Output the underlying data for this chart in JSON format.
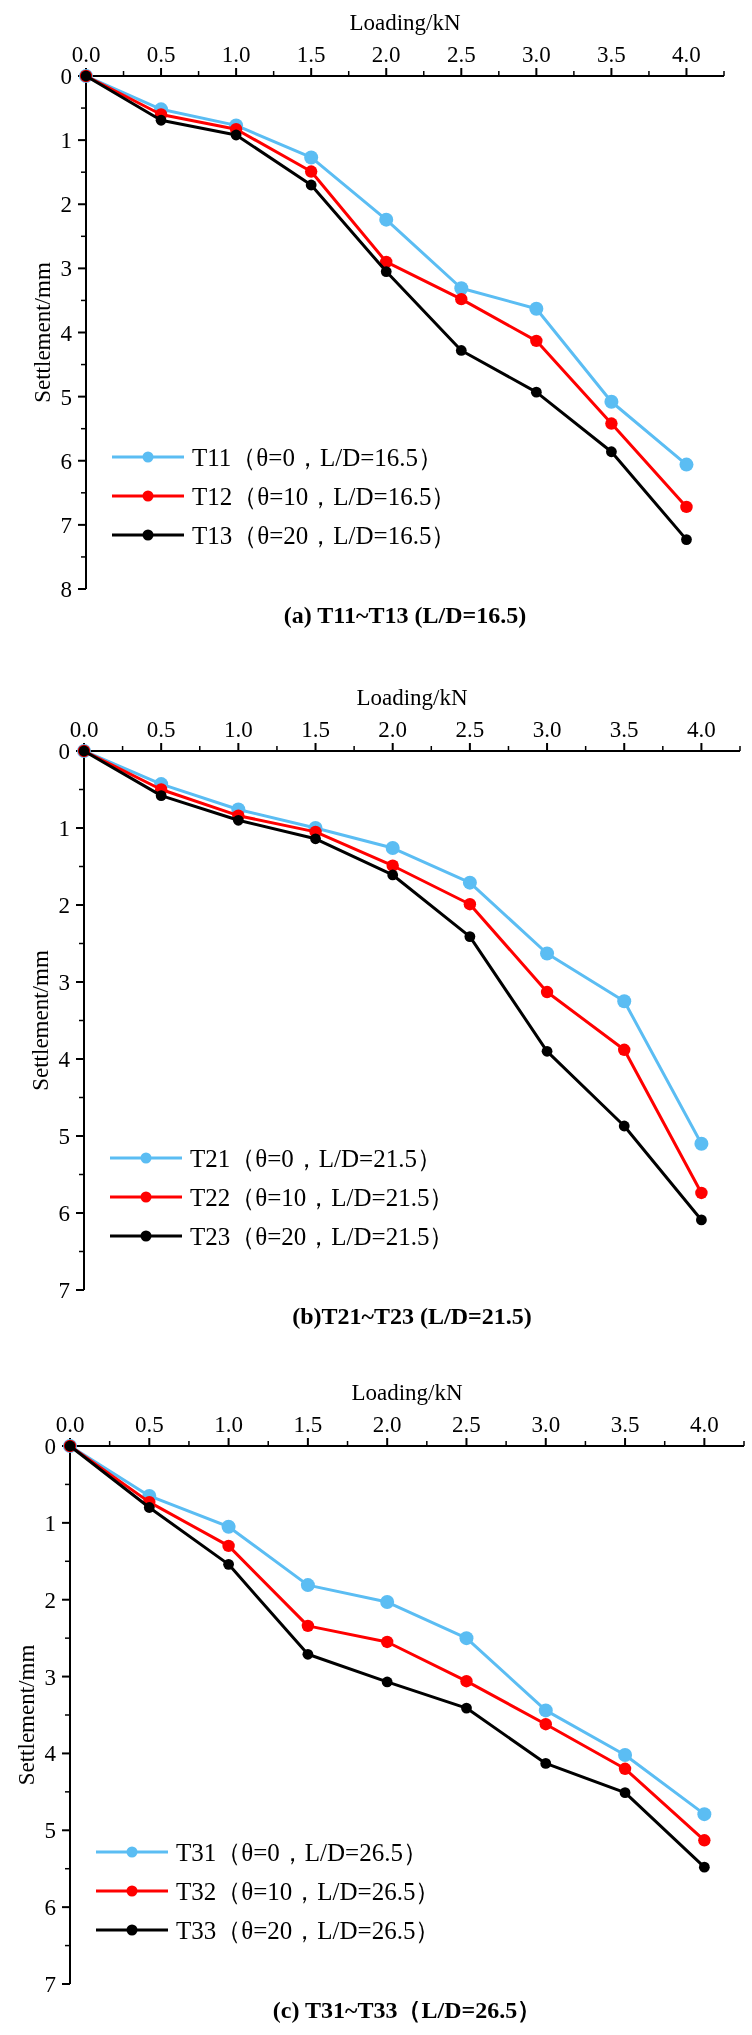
{
  "chart_data": [
    {
      "type": "line",
      "title": "(a) T11~T13 (L/D=16.5)",
      "xlabel": "Loading/kN",
      "ylabel": "Settlement/mm",
      "x": [
        0,
        0.5,
        1.0,
        1.5,
        2.0,
        2.5,
        3.0,
        3.5,
        4.0
      ],
      "xlim": [
        0,
        4.25
      ],
      "xticks": [
        {
          "value": 0,
          "label": "0.0"
        },
        {
          "value": 0.5,
          "label": "0.5"
        },
        {
          "value": 1,
          "label": "1.0"
        },
        {
          "value": 1.5,
          "label": "1.5"
        },
        {
          "value": 2,
          "label": "2.0"
        },
        {
          "value": 2.5,
          "label": "2.5"
        },
        {
          "value": 3,
          "label": "3.0"
        },
        {
          "value": 3.5,
          "label": "3.5"
        },
        {
          "value": 4,
          "label": "4.0"
        }
      ],
      "ylim": [
        8,
        0
      ],
      "yticks": [
        0,
        1,
        2,
        3,
        4,
        5,
        6,
        7,
        8
      ],
      "marker": "circle",
      "legend": "bottom left",
      "grid": false,
      "series": [
        {
          "name": "T11（θ=0，L/D=16.5）",
          "color": "#5bbdf3",
          "values": [
            0,
            0.52,
            0.77,
            1.27,
            2.24,
            3.31,
            3.63,
            5.08,
            6.06
          ]
        },
        {
          "name": "T12（θ=10，L/D=16.5）",
          "color": "#ff0000",
          "values": [
            0,
            0.6,
            0.83,
            1.49,
            2.9,
            3.48,
            4.13,
            5.42,
            6.72
          ]
        },
        {
          "name": "T13（θ=20，L/D=16.5）",
          "color": "#000000",
          "values": [
            0,
            0.69,
            0.92,
            1.7,
            3.05,
            4.28,
            4.93,
            5.86,
            7.23
          ]
        }
      ]
    },
    {
      "type": "line",
      "title": "(b)T21~T23 (L/D=21.5)",
      "xlabel": "Loading/kN",
      "ylabel": "Settlement/mm",
      "x": [
        0,
        0.5,
        1.0,
        1.5,
        2.0,
        2.5,
        3.0,
        3.5,
        4.0
      ],
      "xlim": [
        0,
        4.25
      ],
      "xticks": [
        {
          "value": 0,
          "label": "0.0"
        },
        {
          "value": 0.5,
          "label": "0.5"
        },
        {
          "value": 1,
          "label": "1.0"
        },
        {
          "value": 1.5,
          "label": "1.5"
        },
        {
          "value": 2,
          "label": "2.0"
        },
        {
          "value": 2.5,
          "label": "2.5"
        },
        {
          "value": 3,
          "label": "3.0"
        },
        {
          "value": 3.5,
          "label": "3.5"
        },
        {
          "value": 4,
          "label": "4.0"
        }
      ],
      "ylim": [
        7,
        0
      ],
      "yticks": [
        0,
        1,
        2,
        3,
        4,
        5,
        6,
        7
      ],
      "marker": "circle",
      "legend": "bottom left",
      "grid": false,
      "series": [
        {
          "name": "T21（θ=0，L/D=21.5）",
          "color": "#5bbdf3",
          "values": [
            0,
            0.43,
            0.76,
            1.0,
            1.26,
            1.71,
            2.63,
            3.25,
            5.1
          ]
        },
        {
          "name": "T22（θ=10，L/D=21.5）",
          "color": "#ff0000",
          "values": [
            0,
            0.5,
            0.84,
            1.05,
            1.49,
            1.99,
            3.13,
            3.88,
            5.74
          ]
        },
        {
          "name": "T23（θ=20，L/D=21.5）",
          "color": "#000000",
          "values": [
            0,
            0.58,
            0.9,
            1.14,
            1.61,
            2.41,
            3.9,
            4.87,
            6.09
          ]
        }
      ]
    },
    {
      "type": "line",
      "title": "(c) T31~T33（L/D=26.5）",
      "xlabel": "Loading/kN",
      "ylabel": "Settlement/mm",
      "x": [
        0,
        0.5,
        1.0,
        1.5,
        2.0,
        2.5,
        3.0,
        3.5,
        4.0
      ],
      "xlim": [
        0,
        4.25
      ],
      "xticks": [
        {
          "value": 0,
          "label": "0.0"
        },
        {
          "value": 0.5,
          "label": "0.5"
        },
        {
          "value": 1,
          "label": "1.0"
        },
        {
          "value": 1.5,
          "label": "1.5"
        },
        {
          "value": 2,
          "label": "2.0"
        },
        {
          "value": 2.5,
          "label": "2.5"
        },
        {
          "value": 3,
          "label": "3.0"
        },
        {
          "value": 3.5,
          "label": "3.5"
        },
        {
          "value": 4,
          "label": "4.0"
        }
      ],
      "ylim": [
        7,
        0
      ],
      "yticks": [
        0,
        1,
        2,
        3,
        4,
        5,
        6,
        7
      ],
      "marker": "circle",
      "legend": "bottom left",
      "grid": false,
      "series": [
        {
          "name": "T31（θ=0，L/D=26.5）",
          "color": "#5bbdf3",
          "values": [
            0,
            0.65,
            1.05,
            1.81,
            2.03,
            2.5,
            3.44,
            4.02,
            4.79
          ]
        },
        {
          "name": "T32（θ=10，L/D=26.5）",
          "color": "#ff0000",
          "values": [
            0,
            0.73,
            1.3,
            2.34,
            2.55,
            3.06,
            3.62,
            4.2,
            5.13
          ]
        },
        {
          "name": "T33（θ=20，L/D=26.5）",
          "color": "#000000",
          "values": [
            0,
            0.8,
            1.54,
            2.71,
            3.07,
            3.41,
            4.13,
            4.51,
            5.48
          ]
        }
      ]
    }
  ]
}
